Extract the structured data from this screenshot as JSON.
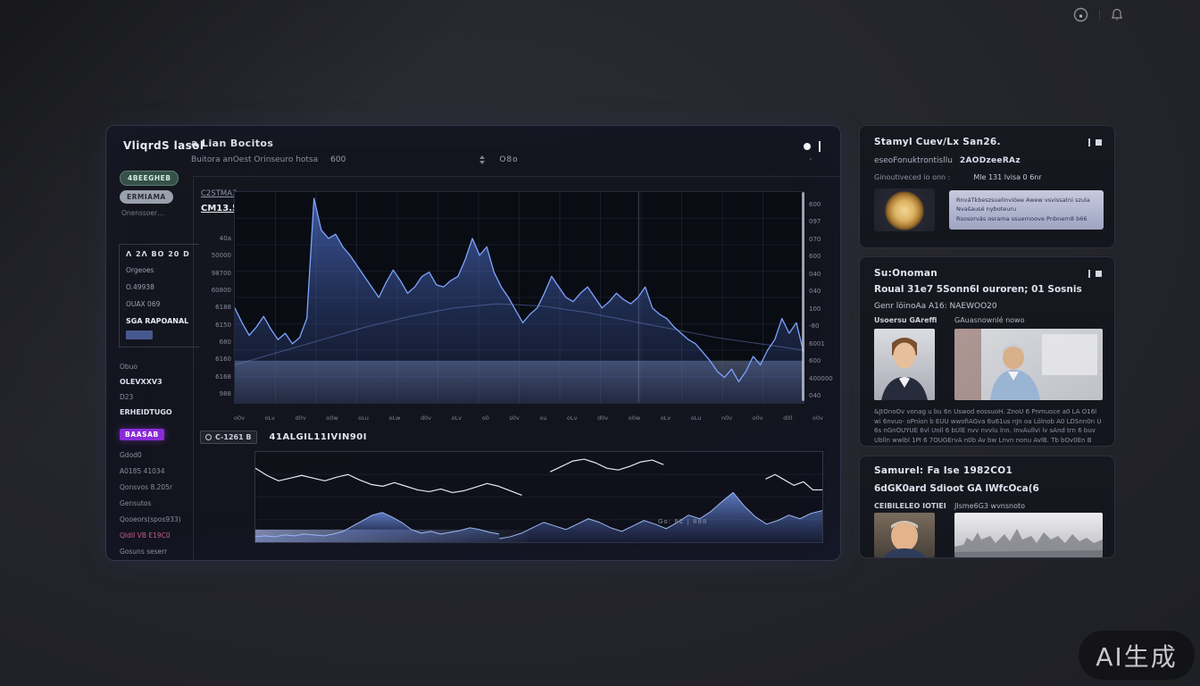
{
  "screen": {
    "watermark": "AI生成"
  },
  "main_panel": {
    "logo": "VliqrdS lasol",
    "title": "a Lian Bocitos",
    "subtitle": "Buitora anOest Orinseuro hotsa",
    "subtitle_value": "600",
    "header_control": "O8o",
    "sidebar": {
      "primary_button": "4BEEGHEB",
      "secondary_button": "ERMIAMA",
      "caption": "Onenssoer…",
      "watch_box": {
        "header": "Λ 2Λ BO 20  D",
        "items": [
          "Orgeoes",
          "O.49938",
          "OUAX 069"
        ],
        "highlight": "SGA RAPOANAL"
      },
      "list1": [
        {
          "label": "Obuo",
          "style": "dim"
        },
        {
          "label": "OLEVXXV3",
          "style": "bright"
        },
        {
          "label": "D23",
          "style": "dim"
        },
        {
          "label": "ERHEIDTUGO",
          "style": "bright"
        }
      ],
      "badge": "BAASAB",
      "list2": [
        {
          "label": "Gdod0",
          "style": "dim"
        },
        {
          "label": "A0185 41034",
          "style": "dim"
        },
        {
          "label": "Qonsvos 8.205r",
          "style": "dim"
        },
        {
          "label": "Gensutos",
          "style": "dim"
        },
        {
          "label": "Qooeors(spos933)",
          "style": "dim"
        },
        {
          "label": "QIdII VB E19C0",
          "style": "pink"
        },
        {
          "label": "Gosuns seserr",
          "style": "dim"
        }
      ]
    },
    "chart": {
      "series_label_1": "C2STMA3",
      "series_label_2": "CM13.5"
    },
    "bottom_chart": {
      "tag": "C-1261 B",
      "title": "41ALGIL11IVIN90I",
      "footnote": "Go: 82  |  888"
    }
  },
  "news_cards": [
    {
      "title": "Stamyl Cuev/Lx San26.",
      "meta1_a": "eseoFonuktrontisllu",
      "meta1_b": "2AODzeeRAz",
      "meta2_left": "Ginoutiveced io onn :",
      "meta2_right": "Mle 131 lvisa 0 6nr",
      "panel_line_1": "RnváTkbeszsuelinvióee Awew vsvissatni szula",
      "panel_line_2": "Nvašausé nyboteuru",
      "panel_line_3": "Rsosorvás osrama ssuernoove Pnbnern8 b66"
    },
    {
      "title": "Su:Onoman",
      "headline": "Roual 31e7 5Sonn6l ouroren; 01 Sosnis",
      "subline": "Genr löinoAa A16:  NAEWOO20",
      "col_left": "Usoersu GAreffi",
      "col_right": "GAuasnownlé nowo",
      "body": "&JtOnoOv vonag u bu 6n Uswod eossuoH. ZnoU 6 Pnmuoce a0 LA O16l wi 6nvuo- oPnion b EUU wwofiAGva 6u61us nJn oa Lölnob A0 LDSnn0n U 6s nGnOUYUE 6vl Unll 6 bUlE nvv nvvlu lnn. InvAullvi lv sAnd trn 6 buv Ublln wwlbl 1PI 6 7OUGErvA n0b Av bw Lnvn nonu AvlB. Tb bOv0En B vvlwu lnwvvbw nb 1BlUL."
    },
    {
      "title": "Samurel:  Fa Ise  1982CO1",
      "headline": "6dGK0ard Sdioot  GA lWfcOca(6",
      "col_left": "CEIBILELEO IOTIEI",
      "col_right": "JIsme6G3 wvnsnoto"
    }
  ],
  "chart_data": [
    {
      "id": "price-main",
      "target": "main-chart",
      "type": "area",
      "title": "C2STMA3 / CM13.5 price history",
      "color": "#7da4ff",
      "fill": "url(#gmain)",
      "width": 1.3,
      "x_range": [
        0,
        100
      ],
      "ylim": [
        0,
        100
      ],
      "grid": true,
      "legend_position": "none",
      "values": [
        45,
        38,
        32,
        36,
        41,
        35,
        30,
        33,
        28,
        31,
        40,
        97,
        82,
        78,
        80,
        74,
        70,
        65,
        60,
        55,
        50,
        57,
        63,
        58,
        52,
        55,
        60,
        62,
        56,
        55,
        58,
        60,
        68,
        78,
        70,
        74,
        62,
        55,
        50,
        44,
        38,
        42,
        45,
        52,
        60,
        55,
        50,
        48,
        52,
        55,
        50,
        45,
        48,
        52,
        49,
        47,
        50,
        55,
        45,
        42,
        40,
        36,
        33,
        30,
        28,
        24,
        20,
        15,
        12,
        16,
        10,
        15,
        22,
        18,
        25,
        30,
        40,
        33,
        38,
        24
      ],
      "y_left_labels": [
        "40a",
        "50000",
        "98700",
        "60800",
        "6188",
        "6150",
        "680",
        "6160",
        "6168",
        "988"
      ],
      "y_right_labels": [
        "600",
        "097",
        "070",
        "600",
        "040",
        "040",
        "100",
        "-80",
        "6001",
        "600",
        "400000",
        "040"
      ],
      "x_tick_labels": [
        "o0v",
        "oLv",
        "d0v",
        "o0w",
        "oLu",
        "oLw",
        "d0v",
        "oLv",
        "o0",
        "s0v",
        "ou",
        "oLv",
        "d0v",
        "o0w",
        "oLv",
        "oLu",
        "n0v",
        "o0v",
        "d0l",
        "o0v"
      ]
    },
    {
      "id": "price-trend",
      "target": "main-chart",
      "type": "line",
      "color": "rgba(115,145,225,0.45)",
      "width": 1,
      "x_range": [
        0,
        100
      ],
      "values": [
        18,
        24,
        30,
        36,
        41,
        45,
        47,
        46,
        43,
        39,
        35,
        31,
        28,
        25
      ]
    },
    {
      "id": "indicator-line-a",
      "target": "mini-chart",
      "type": "line",
      "color": "#e6e9f2",
      "width": 1.2,
      "x_range": [
        0,
        47
      ],
      "values": [
        82,
        74,
        68,
        71,
        74,
        71,
        68,
        72,
        75,
        69,
        64,
        62,
        66,
        62,
        58,
        56,
        59,
        55,
        57,
        61,
        65,
        62,
        57,
        52
      ]
    },
    {
      "id": "indicator-line-b",
      "target": "mini-chart",
      "type": "line",
      "color": "#e6e9f2",
      "width": 1.2,
      "x_range": [
        52,
        72
      ],
      "values": [
        78,
        84,
        90,
        92,
        88,
        82,
        80,
        84,
        89,
        91,
        86
      ]
    },
    {
      "id": "indicator-line-c",
      "target": "mini-chart",
      "type": "line",
      "color": "#e6e9f2",
      "width": 1.2,
      "x_range": [
        90,
        100
      ],
      "values": [
        70,
        75,
        69,
        63,
        67,
        58,
        58
      ]
    },
    {
      "id": "volume-left",
      "target": "mini-chart",
      "type": "area",
      "color": "#9cb8ee",
      "fill": "url(#gmini)",
      "width": 1,
      "x_range": [
        0,
        43
      ],
      "values": [
        6,
        7,
        6,
        8,
        7,
        9,
        8,
        7,
        9,
        12,
        18,
        24,
        30,
        33,
        28,
        22,
        14,
        10,
        12,
        9,
        11,
        13,
        16,
        14,
        11,
        9
      ]
    },
    {
      "id": "volume-right",
      "target": "mini-chart",
      "type": "area",
      "color": "#9cb8ee",
      "fill": "url(#gmini)",
      "width": 1,
      "x_range": [
        43,
        100
      ],
      "values": [
        4,
        6,
        10,
        16,
        22,
        18,
        14,
        20,
        26,
        22,
        16,
        12,
        18,
        24,
        20,
        15,
        22,
        30,
        26,
        34,
        45,
        55,
        40,
        28,
        20,
        24,
        30,
        26,
        32,
        35
      ]
    }
  ]
}
